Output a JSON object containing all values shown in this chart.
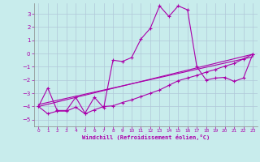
{
  "xlabel": "Windchill (Refroidissement éolien,°C)",
  "bg_color": "#c8ecec",
  "grid_color": "#b0c8d8",
  "line_color": "#aa00aa",
  "xlim": [
    -0.5,
    23.5
  ],
  "ylim": [
    -5.5,
    3.8
  ],
  "xticks": [
    0,
    1,
    2,
    3,
    4,
    5,
    6,
    7,
    8,
    9,
    10,
    11,
    12,
    13,
    14,
    15,
    16,
    17,
    18,
    19,
    20,
    21,
    22,
    23
  ],
  "yticks": [
    -5,
    -4,
    -3,
    -2,
    -1,
    0,
    1,
    2,
    3
  ],
  "series1_x": [
    0,
    1,
    2,
    3,
    4,
    5,
    6,
    7,
    8,
    9,
    10,
    11,
    12,
    13,
    14,
    15,
    16,
    17,
    18,
    19,
    20,
    21,
    22,
    23
  ],
  "series1_y": [
    -4.0,
    -2.6,
    -4.3,
    -4.3,
    -3.3,
    -4.5,
    -3.3,
    -4.1,
    -0.5,
    -0.6,
    -0.3,
    1.1,
    1.9,
    3.6,
    2.8,
    3.6,
    3.3,
    -1.0,
    -2.0,
    -1.85,
    -1.8,
    -2.1,
    -1.85,
    -0.05
  ],
  "series2_x": [
    0,
    1,
    2,
    3,
    4,
    5,
    6,
    7,
    8,
    9,
    10,
    11,
    12,
    13,
    14,
    15,
    16,
    17,
    18,
    19,
    20,
    21,
    22,
    23
  ],
  "series2_y": [
    -4.0,
    -4.55,
    -4.35,
    -4.35,
    -4.05,
    -4.55,
    -4.25,
    -4.0,
    -3.95,
    -3.7,
    -3.5,
    -3.25,
    -3.0,
    -2.75,
    -2.4,
    -2.05,
    -1.85,
    -1.65,
    -1.4,
    -1.2,
    -0.95,
    -0.75,
    -0.4,
    -0.05
  ],
  "line3_x": [
    0,
    23
  ],
  "line3_y": [
    -4.0,
    -0.05
  ],
  "line4_x": [
    0,
    23
  ],
  "line4_y": [
    -3.85,
    -0.25
  ]
}
